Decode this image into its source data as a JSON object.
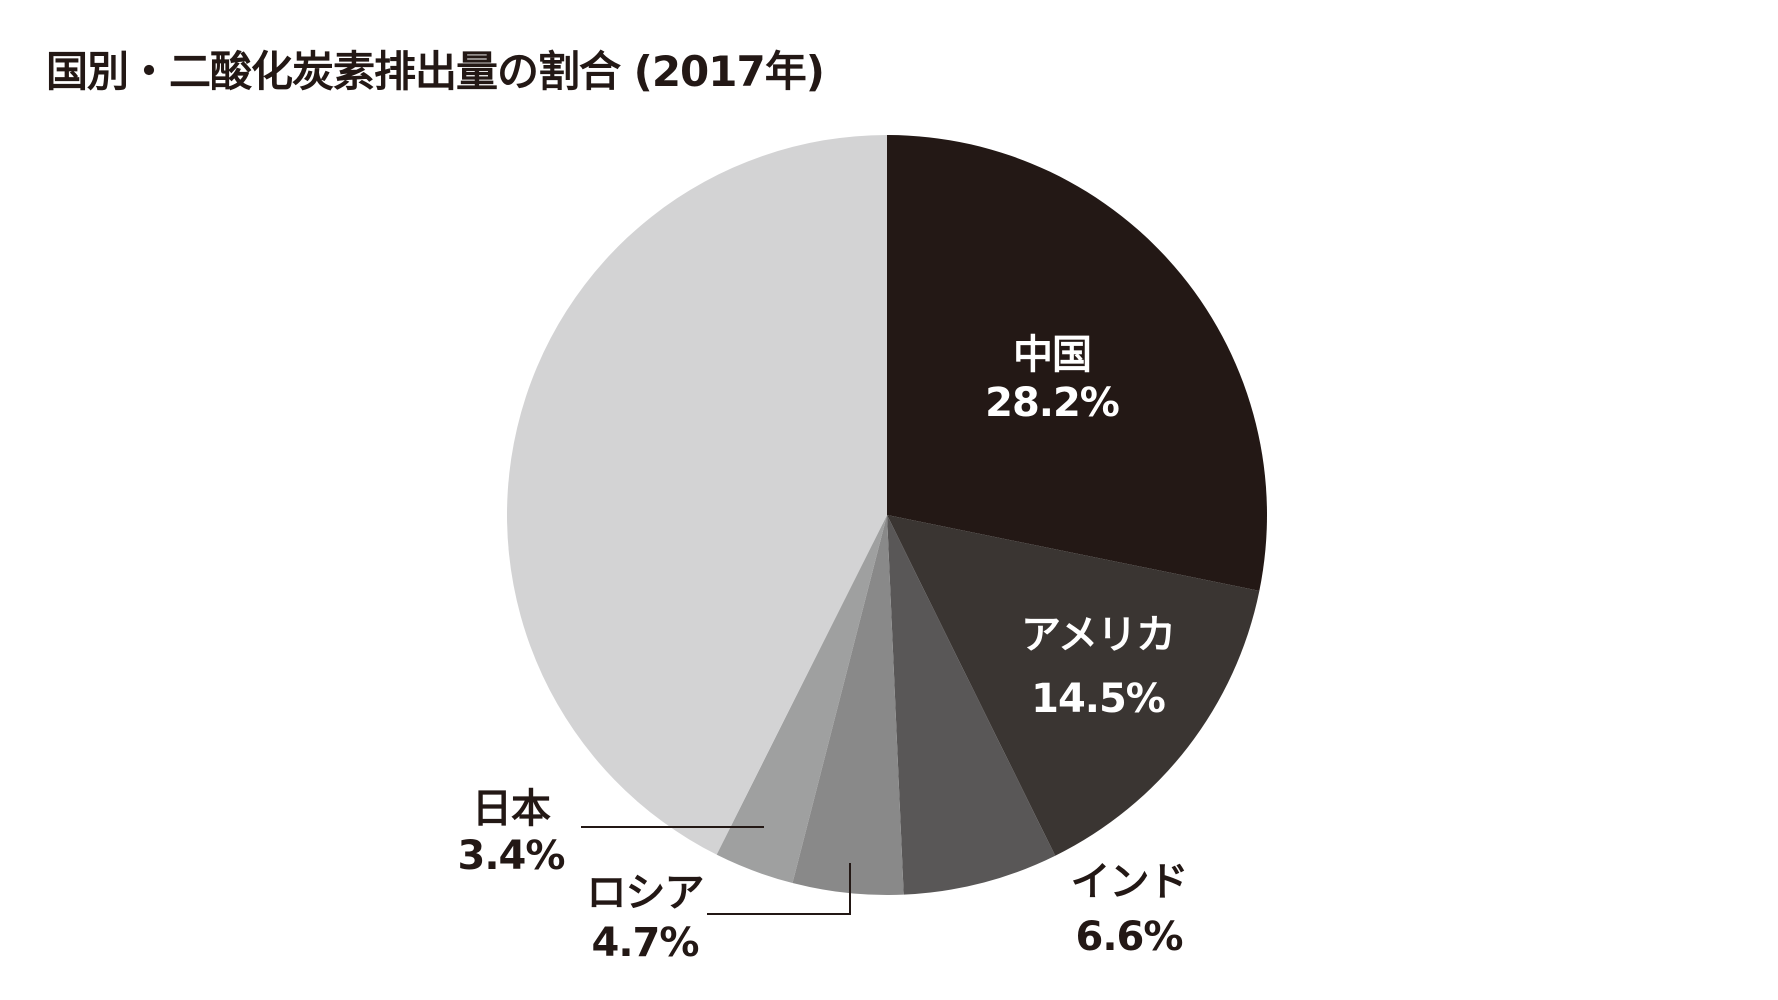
{
  "chart_data": {
    "type": "pie",
    "title": "国別・二酸化炭素排出量の割合 (2017年)",
    "start_angle": "12 o'clock",
    "direction": "clockwise",
    "slices": [
      {
        "label": "中国",
        "value": 28.2,
        "value_label": "28.2%",
        "color": "#231815",
        "label_color": "#ffffff"
      },
      {
        "label": "アメリカ",
        "value": 14.5,
        "value_label": "14.5%",
        "color": "#3a3532",
        "label_color": "#ffffff"
      },
      {
        "label": "インド",
        "value": 6.6,
        "value_label": "6.6%",
        "color": "#595757",
        "label_color": "#231815"
      },
      {
        "label": "ロシア",
        "value": 4.7,
        "value_label": "4.7%",
        "color": "#898989",
        "label_color": "#231815"
      },
      {
        "label": "日本",
        "value": 3.4,
        "value_label": "3.4%",
        "color": "#9fa0a0",
        "label_color": "#231815"
      },
      {
        "label": "",
        "value": 42.6,
        "value_label": "",
        "color": "#d3d3d4",
        "label_color": "#231815"
      }
    ]
  }
}
